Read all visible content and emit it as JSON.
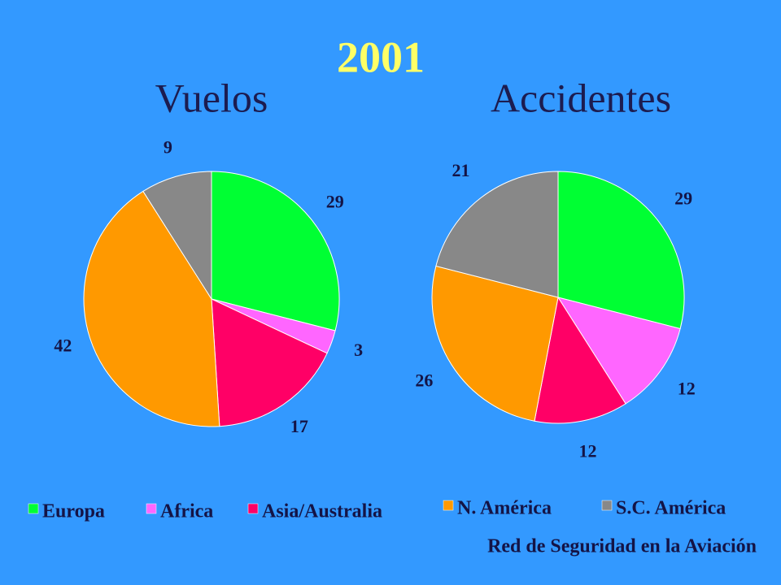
{
  "title": "2001",
  "source": "Red de Seguridad en la Aviación",
  "chart_data": [
    {
      "type": "pie",
      "title": "Vuelos",
      "categories": [
        "Europa",
        "Africa",
        "Asia/Australia",
        "N. América",
        "S.C. América"
      ],
      "colors": [
        "#00ff33",
        "#ff66ff",
        "#ff0066",
        "#ff9900",
        "#888888"
      ],
      "values": [
        29,
        3,
        17,
        42,
        9
      ]
    },
    {
      "type": "pie",
      "title": "Accidentes",
      "values": [
        29,
        12,
        12,
        26,
        21
      ]
    }
  ]
}
